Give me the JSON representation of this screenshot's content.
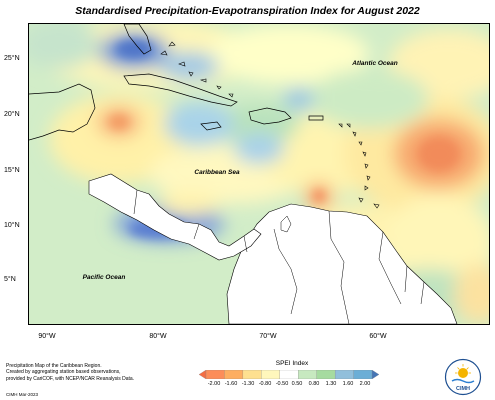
{
  "title": "Standardised Precipitation-Evapotranspiration Index for August 2022",
  "map": {
    "region_labels": {
      "atlantic": "Atlantic Ocean",
      "caribbean": "Caribbean Sea",
      "pacific": "Pacific Ocean"
    },
    "lat_labels": [
      "25°N",
      "20°N",
      "15°N",
      "10°N",
      "5°N"
    ],
    "lon_labels": [
      "90°W",
      "80°W",
      "70°W",
      "60°W"
    ]
  },
  "legend": {
    "title": "SPEI Index",
    "ticks": [
      "-2.00",
      "-1.60",
      "-1.30",
      "-0.80",
      "-0.50",
      "0.50",
      "0.80",
      "1.30",
      "1.60",
      "2.00"
    ],
    "colors": [
      "#f46d43",
      "#fc8d59",
      "#fdae61",
      "#fee090",
      "#fff7bc",
      "#ffffff",
      "#c7e9c0",
      "#a6dba0",
      "#91bfdb",
      "#6baed6",
      "#4575b4"
    ]
  },
  "credits": {
    "line1": "Precipitation Map of the Caribbean Region.",
    "line2": "Created by aggregating station based observations,",
    "line3": "provided by CariCOF, with NCEP/NCAR Reanalysis Data.",
    "stamp": "CIMH Mar-2023"
  },
  "logo": {
    "text": "CIMH"
  }
}
